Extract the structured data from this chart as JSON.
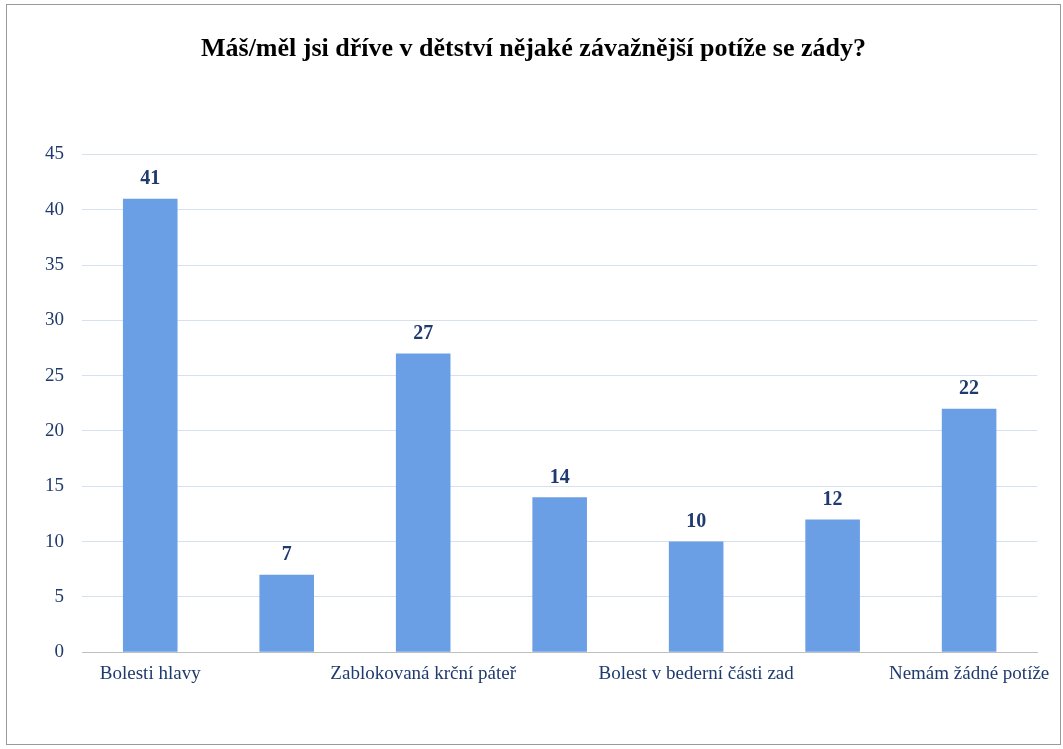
{
  "chart_data": {
    "type": "bar",
    "title": "Máš/měl jsi dříve v dětství nějaké závažnější potíže se zády?",
    "categories": [
      "Bolesti hlavy",
      null,
      "Zablokovaná krční páteř",
      null,
      "Bolest v bederní části zad",
      null,
      "Nemám žádné potíže"
    ],
    "values": [
      41,
      7,
      27,
      14,
      10,
      12,
      22
    ],
    "color": "#6a9fe6",
    "ylim": [
      0,
      45
    ],
    "yticks": [
      0,
      5,
      10,
      15,
      20,
      25,
      30,
      35,
      40,
      45
    ],
    "grid": "y",
    "data_labels": true,
    "legend": false
  }
}
